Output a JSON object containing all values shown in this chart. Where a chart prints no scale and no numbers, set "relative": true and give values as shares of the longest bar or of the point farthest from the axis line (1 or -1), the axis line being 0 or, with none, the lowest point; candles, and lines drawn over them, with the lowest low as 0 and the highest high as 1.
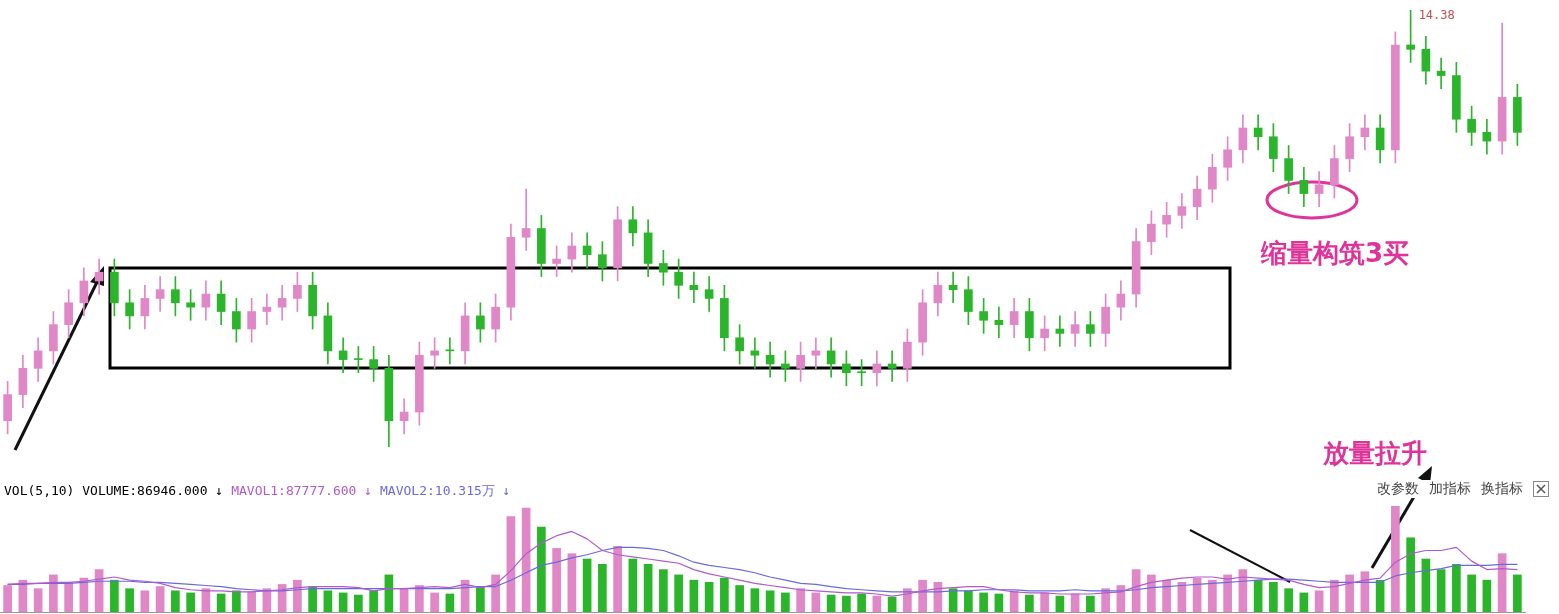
{
  "chart_data": [
    {
      "type": "candlestick",
      "relative": true,
      "categories": [
        null,
        null,
        null,
        null,
        null,
        null,
        null,
        null,
        null,
        null,
        null,
        null,
        null,
        null,
        null,
        null,
        null,
        null,
        null,
        null,
        null,
        null,
        null,
        null,
        null,
        null,
        null,
        null,
        null,
        null,
        null,
        null,
        null,
        null,
        null,
        null,
        null,
        null,
        null,
        null,
        null,
        null,
        null,
        null,
        null,
        null,
        null,
        null,
        null,
        null,
        null,
        null,
        null,
        null,
        null,
        null,
        null,
        null,
        null,
        null,
        null,
        null,
        null,
        null,
        null,
        null,
        null,
        null,
        null,
        null,
        null,
        null,
        null,
        null,
        null,
        null,
        null,
        null,
        null,
        null,
        null,
        null,
        null,
        null,
        null,
        null,
        null,
        null,
        null,
        null,
        null,
        null,
        null,
        null,
        null,
        null,
        null,
        null,
        null,
        null
      ],
      "ohlc": [
        [
          0.06,
          0.15,
          0.03,
          0.12
        ],
        [
          0.12,
          0.21,
          0.09,
          0.18
        ],
        [
          0.18,
          0.25,
          0.15,
          0.22
        ],
        [
          0.22,
          0.31,
          0.19,
          0.28
        ],
        [
          0.28,
          0.36,
          0.25,
          0.33
        ],
        [
          0.33,
          0.41,
          0.3,
          0.38
        ],
        [
          0.38,
          0.43,
          0.35,
          0.4
        ],
        [
          0.4,
          0.43,
          0.3,
          0.33
        ],
        [
          0.33,
          0.36,
          0.27,
          0.3
        ],
        [
          0.3,
          0.37,
          0.27,
          0.34
        ],
        [
          0.34,
          0.39,
          0.31,
          0.36
        ],
        [
          0.36,
          0.39,
          0.3,
          0.33
        ],
        [
          0.33,
          0.36,
          0.29,
          0.32
        ],
        [
          0.32,
          0.38,
          0.29,
          0.35
        ],
        [
          0.35,
          0.38,
          0.28,
          0.31
        ],
        [
          0.31,
          0.34,
          0.24,
          0.27
        ],
        [
          0.27,
          0.34,
          0.24,
          0.31
        ],
        [
          0.31,
          0.35,
          0.28,
          0.32
        ],
        [
          0.32,
          0.37,
          0.29,
          0.34
        ],
        [
          0.34,
          0.4,
          0.31,
          0.37
        ],
        [
          0.37,
          0.4,
          0.27,
          0.3
        ],
        [
          0.3,
          0.33,
          0.19,
          0.22
        ],
        [
          0.22,
          0.25,
          0.17,
          0.2
        ],
        [
          0.2,
          0.23,
          0.17,
          0.2
        ],
        [
          0.2,
          0.23,
          0.15,
          0.18
        ],
        [
          0.18,
          0.21,
          0.0,
          0.06
        ],
        [
          0.06,
          0.11,
          0.03,
          0.08
        ],
        [
          0.08,
          0.24,
          0.05,
          0.21
        ],
        [
          0.21,
          0.25,
          0.18,
          0.22
        ],
        [
          0.22,
          0.25,
          0.19,
          0.22
        ],
        [
          0.22,
          0.33,
          0.19,
          0.3
        ],
        [
          0.3,
          0.33,
          0.24,
          0.27
        ],
        [
          0.27,
          0.35,
          0.24,
          0.32
        ],
        [
          0.32,
          0.51,
          0.29,
          0.48
        ],
        [
          0.48,
          0.59,
          0.45,
          0.5
        ],
        [
          0.5,
          0.53,
          0.39,
          0.42
        ],
        [
          0.42,
          0.46,
          0.39,
          0.43
        ],
        [
          0.43,
          0.49,
          0.4,
          0.46
        ],
        [
          0.46,
          0.49,
          0.41,
          0.44
        ],
        [
          0.44,
          0.47,
          0.38,
          0.41
        ],
        [
          0.41,
          0.55,
          0.38,
          0.52
        ],
        [
          0.52,
          0.55,
          0.46,
          0.49
        ],
        [
          0.49,
          0.52,
          0.39,
          0.42
        ],
        [
          0.42,
          0.45,
          0.37,
          0.4
        ],
        [
          0.4,
          0.43,
          0.34,
          0.37
        ],
        [
          0.37,
          0.4,
          0.33,
          0.36
        ],
        [
          0.36,
          0.39,
          0.31,
          0.34
        ],
        [
          0.34,
          0.37,
          0.22,
          0.25
        ],
        [
          0.25,
          0.28,
          0.19,
          0.22
        ],
        [
          0.22,
          0.25,
          0.18,
          0.21
        ],
        [
          0.21,
          0.24,
          0.16,
          0.19
        ],
        [
          0.19,
          0.22,
          0.15,
          0.18
        ],
        [
          0.18,
          0.24,
          0.15,
          0.21
        ],
        [
          0.21,
          0.25,
          0.18,
          0.22
        ],
        [
          0.22,
          0.25,
          0.16,
          0.19
        ],
        [
          0.19,
          0.22,
          0.14,
          0.17
        ],
        [
          0.17,
          0.2,
          0.14,
          0.17
        ],
        [
          0.17,
          0.22,
          0.14,
          0.19
        ],
        [
          0.19,
          0.22,
          0.15,
          0.18
        ],
        [
          0.18,
          0.27,
          0.15,
          0.24
        ],
        [
          0.24,
          0.36,
          0.21,
          0.33
        ],
        [
          0.33,
          0.4,
          0.3,
          0.37
        ],
        [
          0.37,
          0.4,
          0.33,
          0.36
        ],
        [
          0.36,
          0.39,
          0.28,
          0.31
        ],
        [
          0.31,
          0.34,
          0.26,
          0.29
        ],
        [
          0.29,
          0.32,
          0.25,
          0.28
        ],
        [
          0.28,
          0.34,
          0.25,
          0.31
        ],
        [
          0.31,
          0.34,
          0.22,
          0.25
        ],
        [
          0.25,
          0.3,
          0.22,
          0.27
        ],
        [
          0.27,
          0.3,
          0.23,
          0.26
        ],
        [
          0.26,
          0.31,
          0.23,
          0.28
        ],
        [
          0.28,
          0.31,
          0.23,
          0.26
        ],
        [
          0.26,
          0.35,
          0.23,
          0.32
        ],
        [
          0.32,
          0.38,
          0.29,
          0.35
        ],
        [
          0.35,
          0.5,
          0.32,
          0.47
        ],
        [
          0.47,
          0.54,
          0.44,
          0.51
        ],
        [
          0.51,
          0.56,
          0.48,
          0.53
        ],
        [
          0.53,
          0.58,
          0.5,
          0.55
        ],
        [
          0.55,
          0.62,
          0.52,
          0.59
        ],
        [
          0.59,
          0.67,
          0.56,
          0.64
        ],
        [
          0.64,
          0.71,
          0.61,
          0.68
        ],
        [
          0.68,
          0.76,
          0.65,
          0.73
        ],
        [
          0.73,
          0.76,
          0.68,
          0.71
        ],
        [
          0.71,
          0.74,
          0.63,
          0.66
        ],
        [
          0.66,
          0.69,
          0.58,
          0.61
        ],
        [
          0.61,
          0.64,
          0.55,
          0.58
        ],
        [
          0.58,
          0.63,
          0.55,
          0.6
        ],
        [
          0.6,
          0.69,
          0.57,
          0.66
        ],
        [
          0.66,
          0.74,
          0.63,
          0.71
        ],
        [
          0.71,
          0.76,
          0.68,
          0.73
        ],
        [
          0.73,
          0.76,
          0.65,
          0.68
        ],
        [
          0.68,
          0.95,
          0.65,
          0.92
        ],
        [
          0.92,
          1.0,
          0.88,
          0.91
        ],
        [
          0.91,
          0.94,
          0.83,
          0.86
        ],
        [
          0.86,
          0.89,
          0.82,
          0.85
        ],
        [
          0.85,
          0.88,
          0.72,
          0.75
        ],
        [
          0.75,
          0.78,
          0.69,
          0.72
        ],
        [
          0.72,
          0.75,
          0.67,
          0.7
        ],
        [
          0.7,
          0.97,
          0.67,
          0.8
        ],
        [
          0.8,
          0.83,
          0.69,
          0.72
        ]
      ],
      "colors": [
        "#e087c8",
        "#e087c8",
        "#e087c8",
        "#e087c8",
        "#e087c8",
        "#e087c8",
        "#e087c8",
        "#2bb52b",
        "#2bb52b",
        "#e087c8",
        "#e087c8",
        "#2bb52b",
        "#2bb52b",
        "#e087c8",
        "#2bb52b",
        "#2bb52b",
        "#e087c8",
        "#e087c8",
        "#e087c8",
        "#e087c8",
        "#2bb52b",
        "#2bb52b",
        "#2bb52b",
        "#2bb52b",
        "#2bb52b",
        "#2bb52b",
        "#e087c8",
        "#e087c8",
        "#e087c8",
        "#2bb52b",
        "#e087c8",
        "#2bb52b",
        "#e087c8",
        "#e087c8",
        "#e087c8",
        "#2bb52b",
        "#e087c8",
        "#e087c8",
        "#2bb52b",
        "#2bb52b",
        "#e087c8",
        "#2bb52b",
        "#2bb52b",
        "#2bb52b",
        "#2bb52b",
        "#2bb52b",
        "#2bb52b",
        "#2bb52b",
        "#2bb52b",
        "#2bb52b",
        "#2bb52b",
        "#2bb52b",
        "#e087c8",
        "#e087c8",
        "#2bb52b",
        "#2bb52b",
        "#2bb52b",
        "#e087c8",
        "#2bb52b",
        "#e087c8",
        "#e087c8",
        "#e087c8",
        "#2bb52b",
        "#2bb52b",
        "#2bb52b",
        "#2bb52b",
        "#e087c8",
        "#2bb52b",
        "#e087c8",
        "#2bb52b",
        "#e087c8",
        "#2bb52b",
        "#e087c8",
        "#e087c8",
        "#e087c8",
        "#e087c8",
        "#e087c8",
        "#e087c8",
        "#e087c8",
        "#e087c8",
        "#e087c8",
        "#e087c8",
        "#2bb52b",
        "#2bb52b",
        "#2bb52b",
        "#2bb52b",
        "#e087c8",
        "#e087c8",
        "#e087c8",
        "#e087c8",
        "#2bb52b",
        "#e087c8",
        "#2bb52b",
        "#2bb52b",
        "#2bb52b",
        "#2bb52b",
        "#2bb52b",
        "#2bb52b",
        "#e087c8",
        "#2bb52b"
      ],
      "annotations": [
        "14.38",
        "缩量构筑3买",
        "放量拉升"
      ]
    },
    {
      "type": "bar",
      "relative": true,
      "title": "VOL(5,10) VOLUME:86946.000 ↓",
      "categories": [
        null,
        null,
        null,
        null,
        null,
        null,
        null,
        null,
        null,
        null,
        null,
        null,
        null,
        null,
        null,
        null,
        null,
        null,
        null,
        null,
        null,
        null,
        null,
        null,
        null,
        null,
        null,
        null,
        null,
        null,
        null,
        null,
        null,
        null,
        null,
        null,
        null,
        null,
        null,
        null,
        null,
        null,
        null,
        null,
        null,
        null,
        null,
        null,
        null,
        null,
        null,
        null,
        null,
        null,
        null,
        null,
        null,
        null,
        null,
        null,
        null,
        null,
        null,
        null,
        null,
        null,
        null,
        null,
        null,
        null,
        null,
        null,
        null,
        null,
        null,
        null,
        null,
        null,
        null,
        null,
        null,
        null,
        null,
        null,
        null,
        null,
        null,
        null,
        null,
        null,
        null,
        null,
        null,
        null,
        null,
        null,
        null,
        null,
        null,
        null
      ],
      "series": [
        {
          "type": "bar",
          "colors": [
            "#e087c8",
            "#e087c8",
            "#e087c8",
            "#e087c8",
            "#e087c8",
            "#e087c8",
            "#e087c8",
            "#2bb52b",
            "#2bb52b",
            "#e087c8",
            "#e087c8",
            "#2bb52b",
            "#2bb52b",
            "#e087c8",
            "#2bb52b",
            "#2bb52b",
            "#e087c8",
            "#e087c8",
            "#e087c8",
            "#e087c8",
            "#2bb52b",
            "#2bb52b",
            "#2bb52b",
            "#2bb52b",
            "#2bb52b",
            "#2bb52b",
            "#e087c8",
            "#e087c8",
            "#e087c8",
            "#2bb52b",
            "#e087c8",
            "#2bb52b",
            "#e087c8",
            "#e087c8",
            "#e087c8",
            "#2bb52b",
            "#e087c8",
            "#e087c8",
            "#2bb52b",
            "#2bb52b",
            "#e087c8",
            "#2bb52b",
            "#2bb52b",
            "#2bb52b",
            "#2bb52b",
            "#2bb52b",
            "#2bb52b",
            "#2bb52b",
            "#2bb52b",
            "#2bb52b",
            "#2bb52b",
            "#2bb52b",
            "#e087c8",
            "#e087c8",
            "#2bb52b",
            "#2bb52b",
            "#2bb52b",
            "#e087c8",
            "#2bb52b",
            "#e087c8",
            "#e087c8",
            "#e087c8",
            "#2bb52b",
            "#2bb52b",
            "#2bb52b",
            "#2bb52b",
            "#e087c8",
            "#2bb52b",
            "#e087c8",
            "#2bb52b",
            "#e087c8",
            "#2bb52b",
            "#e087c8",
            "#e087c8",
            "#e087c8",
            "#e087c8",
            "#e087c8",
            "#e087c8",
            "#e087c8",
            "#e087c8",
            "#e087c8",
            "#e087c8",
            "#2bb52b",
            "#2bb52b",
            "#2bb52b",
            "#2bb52b",
            "#e087c8",
            "#e087c8",
            "#e087c8",
            "#e087c8",
            "#2bb52b",
            "#e087c8",
            "#2bb52b",
            "#2bb52b",
            "#2bb52b",
            "#2bb52b",
            "#2bb52b",
            "#2bb52b",
            "#e087c8",
            "#2bb52b"
          ],
          "values": [
            0.25,
            0.3,
            0.22,
            0.35,
            0.28,
            0.32,
            0.4,
            0.3,
            0.22,
            0.2,
            0.24,
            0.2,
            0.18,
            0.22,
            0.17,
            0.2,
            0.19,
            0.22,
            0.26,
            0.3,
            0.24,
            0.2,
            0.18,
            0.16,
            0.2,
            0.35,
            0.22,
            0.25,
            0.18,
            0.17,
            0.3,
            0.24,
            0.35,
            0.9,
            0.98,
            0.8,
            0.6,
            0.55,
            0.5,
            0.45,
            0.62,
            0.5,
            0.45,
            0.4,
            0.35,
            0.3,
            0.28,
            0.32,
            0.25,
            0.22,
            0.2,
            0.18,
            0.22,
            0.18,
            0.16,
            0.15,
            0.17,
            0.15,
            0.14,
            0.22,
            0.3,
            0.28,
            0.22,
            0.2,
            0.18,
            0.17,
            0.2,
            0.16,
            0.18,
            0.15,
            0.17,
            0.15,
            0.22,
            0.25,
            0.4,
            0.35,
            0.3,
            0.28,
            0.32,
            0.3,
            0.35,
            0.4,
            0.3,
            0.28,
            0.22,
            0.18,
            0.2,
            0.3,
            0.35,
            0.38,
            0.3,
            1.0,
            0.7,
            0.5,
            0.4,
            0.45,
            0.35,
            0.3,
            0.55,
            0.35
          ]
        },
        {
          "name": "MAVOL1:87777.600 ↓",
          "type": "line",
          "color": "#b05ad0",
          "values": [
            0.26,
            0.27,
            0.27,
            0.28,
            0.28,
            0.29,
            0.31,
            0.33,
            0.3,
            0.29,
            0.27,
            0.23,
            0.21,
            0.2,
            0.2,
            0.19,
            0.19,
            0.2,
            0.21,
            0.23,
            0.24,
            0.24,
            0.24,
            0.23,
            0.2,
            0.22,
            0.22,
            0.23,
            0.24,
            0.23,
            0.26,
            0.23,
            0.26,
            0.39,
            0.55,
            0.65,
            0.72,
            0.76,
            0.69,
            0.58,
            0.54,
            0.52,
            0.5,
            0.48,
            0.46,
            0.4,
            0.36,
            0.33,
            0.3,
            0.27,
            0.25,
            0.23,
            0.21,
            0.2,
            0.19,
            0.18,
            0.18,
            0.17,
            0.15,
            0.17,
            0.2,
            0.22,
            0.23,
            0.24,
            0.24,
            0.21,
            0.19,
            0.18,
            0.18,
            0.17,
            0.17,
            0.17,
            0.18,
            0.19,
            0.24,
            0.28,
            0.3,
            0.32,
            0.33,
            0.33,
            0.31,
            0.33,
            0.32,
            0.31,
            0.3,
            0.26,
            0.23,
            0.24,
            0.27,
            0.3,
            0.32,
            0.47,
            0.55,
            0.58,
            0.58,
            0.61,
            0.48,
            0.4,
            0.41,
            0.4
          ]
        },
        {
          "name": "MAVOL2:10.315万 ↓",
          "type": "line",
          "color": "#6a6ae0",
          "values": [
            0.26,
            0.26,
            0.27,
            0.27,
            0.27,
            0.28,
            0.29,
            0.29,
            0.29,
            0.28,
            0.28,
            0.27,
            0.26,
            0.25,
            0.24,
            0.22,
            0.21,
            0.2,
            0.2,
            0.21,
            0.22,
            0.22,
            0.22,
            0.22,
            0.22,
            0.22,
            0.22,
            0.22,
            0.22,
            0.22,
            0.23,
            0.24,
            0.24,
            0.3,
            0.37,
            0.44,
            0.47,
            0.51,
            0.54,
            0.58,
            0.61,
            0.61,
            0.6,
            0.58,
            0.53,
            0.47,
            0.44,
            0.42,
            0.4,
            0.37,
            0.33,
            0.3,
            0.27,
            0.26,
            0.24,
            0.22,
            0.21,
            0.2,
            0.19,
            0.19,
            0.19,
            0.19,
            0.2,
            0.2,
            0.21,
            0.21,
            0.21,
            0.2,
            0.2,
            0.2,
            0.21,
            0.2,
            0.2,
            0.2,
            0.21,
            0.23,
            0.24,
            0.25,
            0.26,
            0.27,
            0.28,
            0.29,
            0.3,
            0.31,
            0.31,
            0.3,
            0.29,
            0.28,
            0.28,
            0.28,
            0.28,
            0.34,
            0.37,
            0.39,
            0.41,
            0.44,
            0.44,
            0.44,
            0.45,
            0.45
          ]
        }
      ],
      "annotations": [
        "改参数",
        "加指标",
        "换指标"
      ]
    }
  ]
}
